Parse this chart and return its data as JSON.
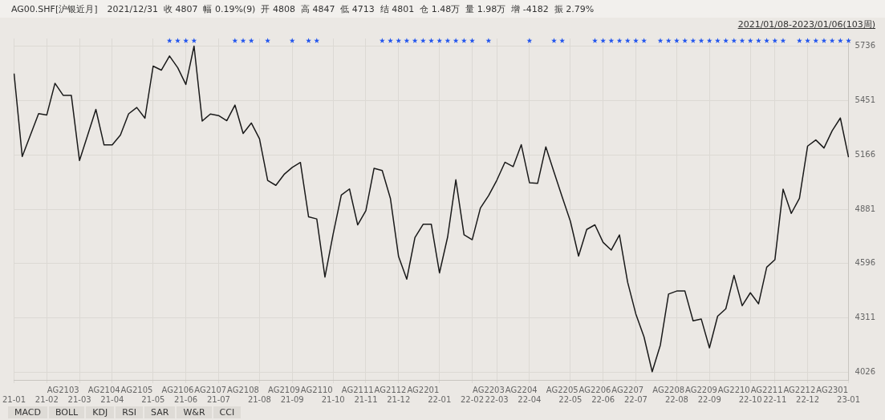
{
  "chart_data": {
    "type": "line",
    "title": "AG00.SHF[沪银近月]",
    "subtitle": "2021/12/31  收 4807  幅 0.19%(9)  开 4808  高 4847  低 4713  结 4801  仓 1.48万  量 1.98万  增 -4182  振 2.79%",
    "annotations": [
      "2021/01/08-2023/01/06(103周)",
      "MACD",
      "BOLL",
      "KDJ",
      "RSI",
      "SAR",
      "W&R",
      "CCI"
    ],
    "categories": [
      "21-01",
      null,
      null,
      null,
      "21-02",
      null,
      "AG2103",
      null,
      "21-03",
      null,
      null,
      "AG2104",
      "21-04",
      null,
      null,
      "AG2105",
      null,
      "21-05",
      null,
      null,
      "AG2106",
      "21-06",
      null,
      null,
      "AG2107",
      "21-07",
      null,
      null,
      "AG2108",
      null,
      "21-08",
      null,
      null,
      "AG2109",
      "21-09",
      null,
      null,
      "AG2110",
      null,
      "21-10",
      null,
      null,
      "AG2111",
      "21-11",
      null,
      null,
      "AG2112",
      "21-12",
      null,
      null,
      "AG2201",
      null,
      "22-01",
      null,
      null,
      null,
      "22-02",
      null,
      "AG2203",
      "22-03",
      null,
      null,
      "AG2204",
      "22-04",
      null,
      null,
      null,
      "AG2205",
      "22-05",
      null,
      null,
      "AG2206",
      "22-06",
      null,
      null,
      "AG2207",
      "22-07",
      null,
      null,
      null,
      "AG2208",
      "22-08",
      null,
      null,
      "AG2209",
      "22-09",
      null,
      null,
      "AG2210",
      null,
      "22-10",
      null,
      "AG2211",
      "22-11",
      null,
      null,
      "AG2212",
      "22-12",
      null,
      null,
      "AG2301",
      null,
      "23-01"
    ],
    "series": [
      {
        "type": "line",
        "color": "#1a1a1a",
        "marker": "none",
        "values": [
          5592,
          5157,
          5270,
          5382,
          5375,
          5541,
          5478,
          5478,
          5136,
          5270,
          5404,
          5218,
          5218,
          5270,
          5381,
          5414,
          5358,
          5631,
          5610,
          5684,
          5623,
          5535,
          5736,
          5343,
          5380,
          5372,
          5345,
          5427,
          5278,
          5333,
          5250,
          5032,
          5006,
          5063,
          5100,
          5126,
          4841,
          4830,
          4525,
          4750,
          4955,
          4987,
          4799,
          4873,
          5095,
          5084,
          4938,
          4633,
          4514,
          4732,
          4802,
          4802,
          4547,
          4736,
          5035,
          4747,
          4721,
          4887,
          4952,
          5032,
          5127,
          5104,
          5219,
          5020,
          5017,
          5208,
          5075,
          4945,
          4818,
          4635,
          4775,
          4799,
          4707,
          4667,
          4746,
          4498,
          4332,
          4212,
          4029,
          4169,
          4436,
          4452,
          4452,
          4296,
          4305,
          4154,
          4320,
          4359,
          4534,
          4375,
          4443,
          4385,
          4577,
          4616,
          4986,
          4859,
          4938,
          5212,
          5244,
          5202,
          5292,
          5359,
          5154
        ]
      },
      {
        "type": "scatter",
        "color": "#2255ee",
        "marker": "star",
        "values": [
          null,
          null,
          null,
          null,
          null,
          null,
          null,
          null,
          null,
          null,
          null,
          null,
          null,
          null,
          null,
          null,
          null,
          null,
          null,
          5764,
          5764,
          5764,
          5764,
          null,
          null,
          null,
          null,
          5764,
          5764,
          5764,
          null,
          5764,
          null,
          null,
          5764,
          null,
          5764,
          5764,
          null,
          null,
          null,
          null,
          null,
          null,
          null,
          5764,
          5764,
          5764,
          5764,
          5764,
          5764,
          5764,
          5764,
          5764,
          5764,
          5764,
          5764,
          null,
          5764,
          null,
          null,
          null,
          null,
          5764,
          null,
          null,
          5764,
          5764,
          null,
          null,
          null,
          5764,
          5764,
          5764,
          5764,
          5764,
          5764,
          5764,
          null,
          5764,
          5764,
          5764,
          5764,
          5764,
          5764,
          5764,
          5764,
          5764,
          5764,
          5764,
          5764,
          5764,
          5764,
          5764,
          5764,
          null,
          5764,
          5764,
          5764,
          5764,
          5764,
          5764,
          5764
        ]
      }
    ],
    "ylim": [
      3986,
      5776
    ],
    "yticks": [
      4026,
      4311,
      4596,
      4881,
      5166,
      5451,
      5736
    ],
    "grid": true,
    "legend": false
  }
}
